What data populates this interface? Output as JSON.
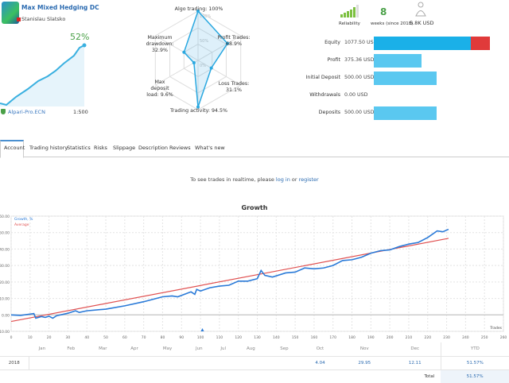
{
  "header": {
    "title": "Max Mixed Hedging DC",
    "author": "Stanislau Slatsko",
    "growth_badge": "52%",
    "broker": "Alpari-Pro.ECN",
    "leverage": "1:500"
  },
  "radar": {
    "axes": [
      {
        "label": "Algo trading: 100%",
        "value": 100
      },
      {
        "label": "Profit Trades: 68.9%",
        "value": 68.9
      },
      {
        "label": "Loss Trades: 31.1%",
        "value": 31.1
      },
      {
        "label": "Trading activity: 94.5%",
        "value": 94.5
      },
      {
        "label": "Max deposit load: 9.6%",
        "value": 9.6
      },
      {
        "label": "Maximum drawdown: 32.9%",
        "value": 32.9
      }
    ],
    "rings": [
      "100%",
      "50%",
      "0%"
    ]
  },
  "summary": {
    "reliability_label": "Reliability",
    "weeks_value": "8",
    "weeks_label": "weeks (since 2018)",
    "subscribers_value": "5.8K USD"
  },
  "stats": [
    {
      "label": "Equity",
      "value": "1077.50 USD",
      "fill": 0.72,
      "extra_fill": 0.14,
      "color": "#1ab0e8",
      "extra_color": "#e03a3a"
    },
    {
      "label": "Profit",
      "value": "375.36 USD",
      "fill": 0.35
    },
    {
      "label": "Initial Deposit",
      "value": "500.00 USD",
      "fill": 0.465
    },
    {
      "label": "Withdrawals",
      "value": "0.00 USD",
      "fill": 0
    },
    {
      "label": "Deposits",
      "value": "500.00 USD",
      "fill": 0.465
    }
  ],
  "tabs": [
    "Account",
    "Trading history",
    "Statistics",
    "Risks",
    "Slippage",
    "Description",
    "Reviews",
    "What's new"
  ],
  "message": {
    "prefix": "To see trades in realtime, please ",
    "login": "log in",
    "or": " or ",
    "register": "register"
  },
  "chart_data": {
    "type": "line",
    "title": "Growth",
    "xlabel": "Trades",
    "xlim": [
      0,
      260
    ],
    "ylim": [
      -10,
      60
    ],
    "xticks": [
      0,
      10,
      20,
      30,
      40,
      50,
      60,
      70,
      80,
      90,
      100,
      110,
      120,
      130,
      140,
      150,
      160,
      170,
      180,
      190,
      200,
      210,
      220,
      230,
      240,
      250,
      260
    ],
    "yticks": [
      "60.00",
      "50.00",
      "40.00",
      "30.00",
      "20.00",
      "10.00",
      "0.00",
      "-10.00"
    ],
    "grid": true,
    "legend": "top-left",
    "series": [
      {
        "name": "Growth, %",
        "color": "#2a7ad8",
        "points": [
          [
            0,
            0
          ],
          [
            5,
            -0.3
          ],
          [
            12,
            0.8
          ],
          [
            13,
            -2
          ],
          [
            16,
            -1
          ],
          [
            18,
            -1.5
          ],
          [
            20,
            -0.8
          ],
          [
            22,
            -2
          ],
          [
            24,
            -0.5
          ],
          [
            30,
            1
          ],
          [
            34,
            2.5
          ],
          [
            36,
            1.5
          ],
          [
            40,
            2.5
          ],
          [
            50,
            3.5
          ],
          [
            60,
            5.5
          ],
          [
            70,
            8
          ],
          [
            80,
            11
          ],
          [
            85,
            11.5
          ],
          [
            88,
            11
          ],
          [
            95,
            14
          ],
          [
            97,
            12.5
          ],
          [
            98,
            15.5
          ],
          [
            100,
            14.5
          ],
          [
            105,
            16.5
          ],
          [
            110,
            17.5
          ],
          [
            115,
            18
          ],
          [
            120,
            20.5
          ],
          [
            125,
            20.5
          ],
          [
            130,
            22
          ],
          [
            132,
            27
          ],
          [
            134,
            24
          ],
          [
            138,
            23
          ],
          [
            145,
            25.5
          ],
          [
            150,
            26
          ],
          [
            155,
            28.5
          ],
          [
            160,
            28
          ],
          [
            165,
            28.5
          ],
          [
            170,
            30
          ],
          [
            175,
            33
          ],
          [
            180,
            33.5
          ],
          [
            185,
            35
          ],
          [
            190,
            37.5
          ],
          [
            195,
            39
          ],
          [
            200,
            39.5
          ],
          [
            205,
            41.5
          ],
          [
            210,
            43
          ],
          [
            215,
            44
          ],
          [
            220,
            47
          ],
          [
            225,
            51
          ],
          [
            228,
            50.5
          ],
          [
            231,
            52
          ]
        ]
      },
      {
        "name": "Average",
        "color": "#e05050",
        "points": [
          [
            0,
            -4
          ],
          [
            231,
            46.5
          ]
        ]
      }
    ]
  },
  "months": {
    "headers": [
      "Jan",
      "Feb",
      "Mar",
      "Apr",
      "May",
      "Jun",
      "Jul",
      "Aug",
      "Sep",
      "Oct",
      "Nov",
      "Dec",
      "YTD"
    ],
    "rows": [
      {
        "year": "2018",
        "values": [
          "",
          "",
          "",
          "",
          "",
          "",
          "",
          "",
          "",
          "4.04",
          "29.95",
          "12.11",
          "51.57%"
        ]
      }
    ],
    "total_label": "Total",
    "total_value": "51.57%"
  }
}
